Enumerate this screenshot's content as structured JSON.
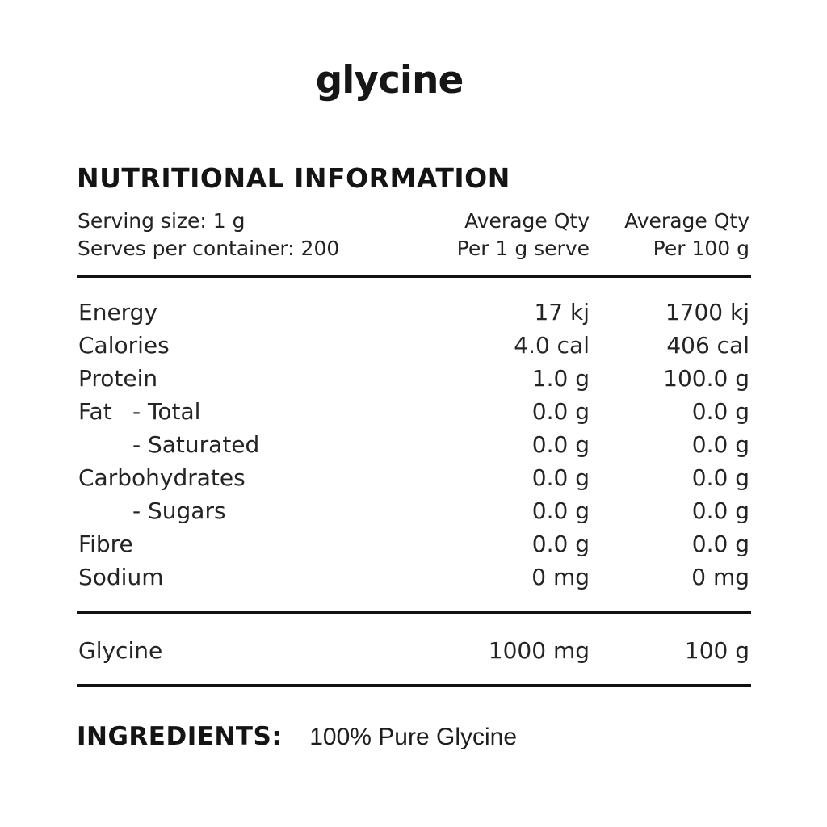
{
  "brand": {
    "logo_text": "glycine"
  },
  "panel": {
    "title": "NUTRITIONAL INFORMATION",
    "serving_size": "Serving size: 1 g",
    "serves_per_container": "Serves per container: 200",
    "columns": {
      "per_serve_line1": "Average Qty",
      "per_serve_line2": "Per 1 g serve",
      "per_100g_line1": "Average Qty",
      "per_100g_line2": "Per 100 g"
    },
    "rows": [
      {
        "prefix": "Energy",
        "sub": "",
        "per_serve": "17 kj",
        "per_100g": "1700 kj"
      },
      {
        "prefix": "Calories",
        "sub": "",
        "per_serve": "4.0 cal",
        "per_100g": "406 cal"
      },
      {
        "prefix": "Protein",
        "sub": "",
        "per_serve": "1.0 g",
        "per_100g": "100.0 g"
      },
      {
        "prefix": "Fat",
        "sub": "- Total",
        "per_serve": "0.0 g",
        "per_100g": "0.0 g"
      },
      {
        "prefix": "",
        "sub": "- Saturated",
        "per_serve": "0.0 g",
        "per_100g": "0.0 g"
      },
      {
        "prefix": "Carbohydrates",
        "sub": "",
        "per_serve": "0.0 g",
        "per_100g": "0.0 g"
      },
      {
        "prefix": "",
        "sub": "- Sugars",
        "per_serve": "0.0 g",
        "per_100g": "0.0 g"
      },
      {
        "prefix": "Fibre",
        "sub": "",
        "per_serve": "0.0 g",
        "per_100g": "0.0 g"
      },
      {
        "prefix": "Sodium",
        "sub": "",
        "per_serve": "0 mg",
        "per_100g": "0 mg"
      }
    ],
    "active_row": {
      "label": "Glycine",
      "per_serve": "1000 mg",
      "per_100g": "100 g"
    }
  },
  "ingredients": {
    "label": "INGREDIENTS:",
    "value": "100% Pure Glycine"
  },
  "colors": {
    "text": "#1c1c1c",
    "rule": "#111111",
    "background": "#ffffff"
  }
}
